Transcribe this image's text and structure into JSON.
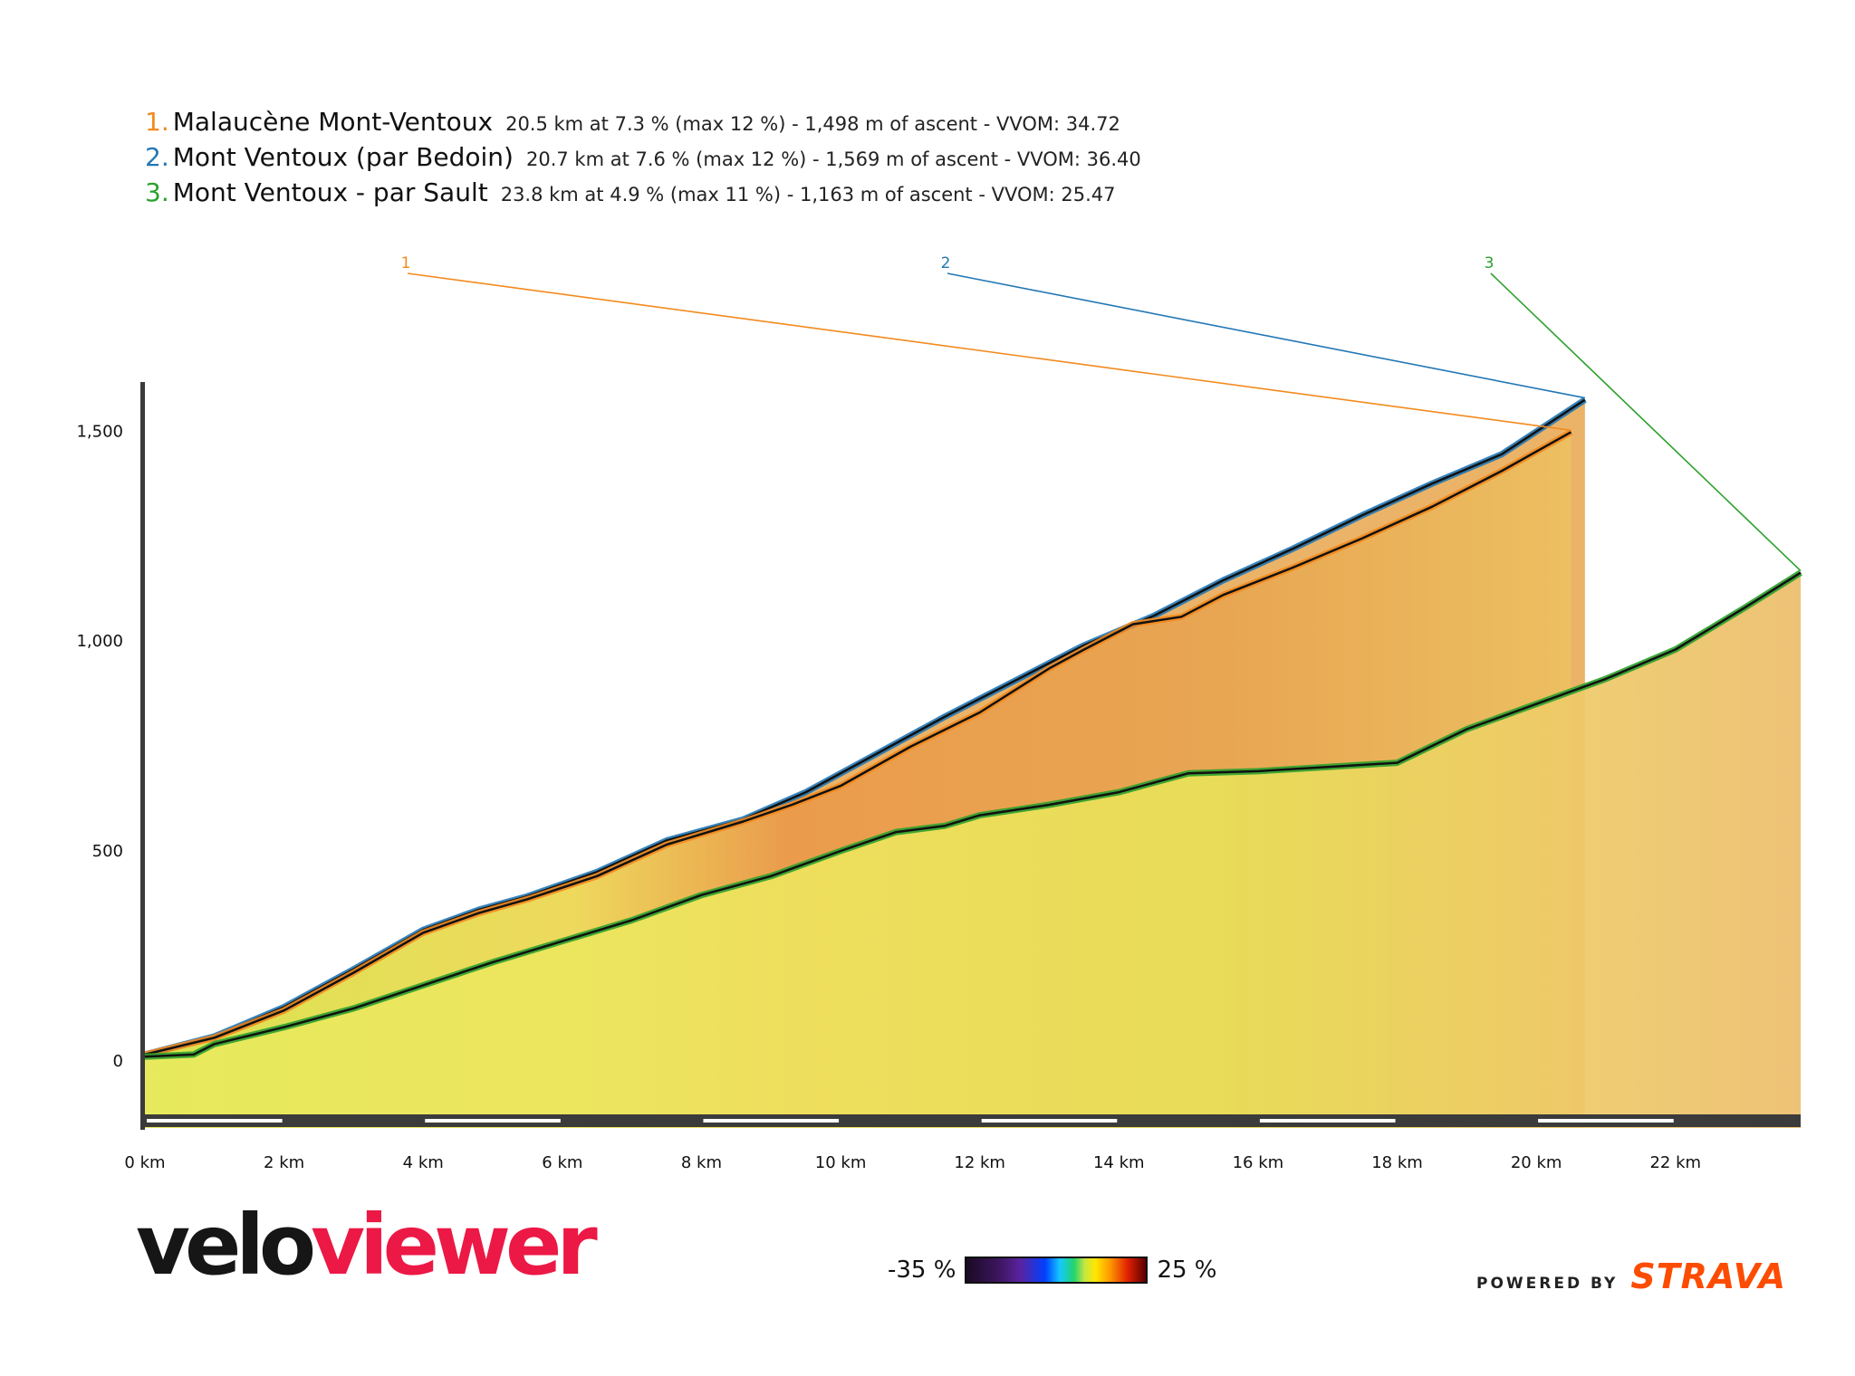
{
  "legend": [
    {
      "num": "1.",
      "name": "Malaucène Mont-Ventoux",
      "stats": "20.5 km at 7.3 % (max 12 %) - 1,498 m of ascent - VVOM: 34.72",
      "color": "#f28a1e"
    },
    {
      "num": "2.",
      "name": "Mont Ventoux (par Bedoin)",
      "stats": "20.7 km at 7.6 % (max 12 %) - 1,569 m of ascent - VVOM: 36.40",
      "color": "#2277b4"
    },
    {
      "num": "3.",
      "name": "Mont Ventoux - par Sault",
      "stats": "23.8 km at 4.9 % (max 11 %) - 1,163 m of ascent - VVOM: 25.47",
      "color": "#2ca02c"
    }
  ],
  "chart_data": {
    "type": "area",
    "x_unit": "km",
    "y_unit": "m",
    "xlim": [
      0,
      23.8
    ],
    "ylim": [
      -160,
      1600
    ],
    "x_ticks": [
      {
        "value": 0,
        "label": "0 km"
      },
      {
        "value": 2,
        "label": "2 km"
      },
      {
        "value": 4,
        "label": "4 km"
      },
      {
        "value": 6,
        "label": "6 km"
      },
      {
        "value": 8,
        "label": "8 km"
      },
      {
        "value": 10,
        "label": "10 km"
      },
      {
        "value": 12,
        "label": "12 km"
      },
      {
        "value": 14,
        "label": "14 km"
      },
      {
        "value": 16,
        "label": "16 km"
      },
      {
        "value": 18,
        "label": "18 km"
      },
      {
        "value": 20,
        "label": "20 km"
      },
      {
        "value": 22,
        "label": "22 km"
      }
    ],
    "y_ticks": [
      {
        "value": 0,
        "label": "0"
      },
      {
        "value": 500,
        "label": "500"
      },
      {
        "value": 1000,
        "label": "1,000"
      },
      {
        "value": 1500,
        "label": "1,500"
      }
    ],
    "series": [
      {
        "id": "2",
        "color": "#2277b4",
        "points": [
          [
            0,
            15
          ],
          [
            1,
            58
          ],
          [
            2,
            128
          ],
          [
            3,
            218
          ],
          [
            4,
            312
          ],
          [
            4.8,
            360
          ],
          [
            5.5,
            392
          ],
          [
            6.5,
            450
          ],
          [
            7.5,
            525
          ],
          [
            8.6,
            575
          ],
          [
            9.5,
            640
          ],
          [
            10.5,
            730
          ],
          [
            11.5,
            820
          ],
          [
            12.5,
            905
          ],
          [
            13.5,
            990
          ],
          [
            14.5,
            1060
          ],
          [
            15.5,
            1145
          ],
          [
            16.5,
            1220
          ],
          [
            17.5,
            1300
          ],
          [
            18.5,
            1375
          ],
          [
            19.5,
            1445
          ],
          [
            20.7,
            1575
          ]
        ]
      },
      {
        "id": "1",
        "color": "#f28a1e",
        "points": [
          [
            0,
            15
          ],
          [
            1,
            55
          ],
          [
            2,
            120
          ],
          [
            3,
            210
          ],
          [
            4,
            305
          ],
          [
            4.8,
            352
          ],
          [
            5.5,
            385
          ],
          [
            6.5,
            440
          ],
          [
            7.5,
            515
          ],
          [
            8.6,
            570
          ],
          [
            9.3,
            610
          ],
          [
            10,
            655
          ],
          [
            11,
            748
          ],
          [
            12,
            830
          ],
          [
            13,
            935
          ],
          [
            13.5,
            980
          ],
          [
            14.2,
            1040
          ],
          [
            14.9,
            1058
          ],
          [
            15.5,
            1110
          ],
          [
            16.5,
            1175
          ],
          [
            17.5,
            1245
          ],
          [
            18.5,
            1320
          ],
          [
            19.5,
            1405
          ],
          [
            20.5,
            1498
          ]
        ]
      },
      {
        "id": "3",
        "color": "#2ca02c",
        "points": [
          [
            0,
            10
          ],
          [
            0.7,
            15
          ],
          [
            1,
            40
          ],
          [
            2,
            80
          ],
          [
            3,
            125
          ],
          [
            4,
            180
          ],
          [
            5,
            235
          ],
          [
            6,
            285
          ],
          [
            7,
            335
          ],
          [
            8,
            395
          ],
          [
            9,
            440
          ],
          [
            10,
            500
          ],
          [
            10.8,
            545
          ],
          [
            11.5,
            560
          ],
          [
            12,
            585
          ],
          [
            13,
            610
          ],
          [
            14,
            640
          ],
          [
            15,
            685
          ],
          [
            16,
            690
          ],
          [
            17,
            700
          ],
          [
            18,
            710
          ],
          [
            19,
            790
          ],
          [
            20,
            850
          ],
          [
            21,
            910
          ],
          [
            22,
            980
          ],
          [
            23,
            1080
          ],
          [
            23.8,
            1163
          ]
        ]
      }
    ],
    "callouts": [
      {
        "label": "1",
        "series": "1",
        "at_x": 20.5
      },
      {
        "label": "2",
        "series": "2",
        "at_x": 20.7
      },
      {
        "label": "3",
        "series": "3",
        "at_x": 23.8
      }
    ]
  },
  "scale": {
    "min_label": "-35 %",
    "max_label": "25 %"
  },
  "branding": {
    "logo_velo": "velo",
    "logo_viewer": "viewer",
    "powered_by": "POWERED BY",
    "strava": "STRAVA"
  }
}
